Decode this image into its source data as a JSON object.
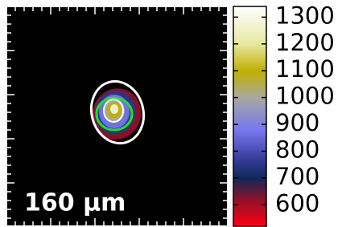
{
  "chart_data": {
    "type": "image",
    "scale_bar_label": "160 μm",
    "clim": [
      520,
      1340
    ],
    "cticks": [
      600,
      700,
      800,
      900,
      1000,
      1100,
      1200,
      1300
    ],
    "colormap": [
      {
        "value": 520,
        "color": "#ff0010"
      },
      {
        "value": 620,
        "color": "#901028"
      },
      {
        "value": 700,
        "color": "#102858"
      },
      {
        "value": 760,
        "color": "#303890"
      },
      {
        "value": 880,
        "color": "#7878f0"
      },
      {
        "value": 1000,
        "color": "#a8a8a0"
      },
      {
        "value": 1100,
        "color": "#c0b000"
      },
      {
        "value": 1200,
        "color": "#e8e8a0"
      },
      {
        "value": 1340,
        "color": "#ffffff"
      }
    ]
  }
}
